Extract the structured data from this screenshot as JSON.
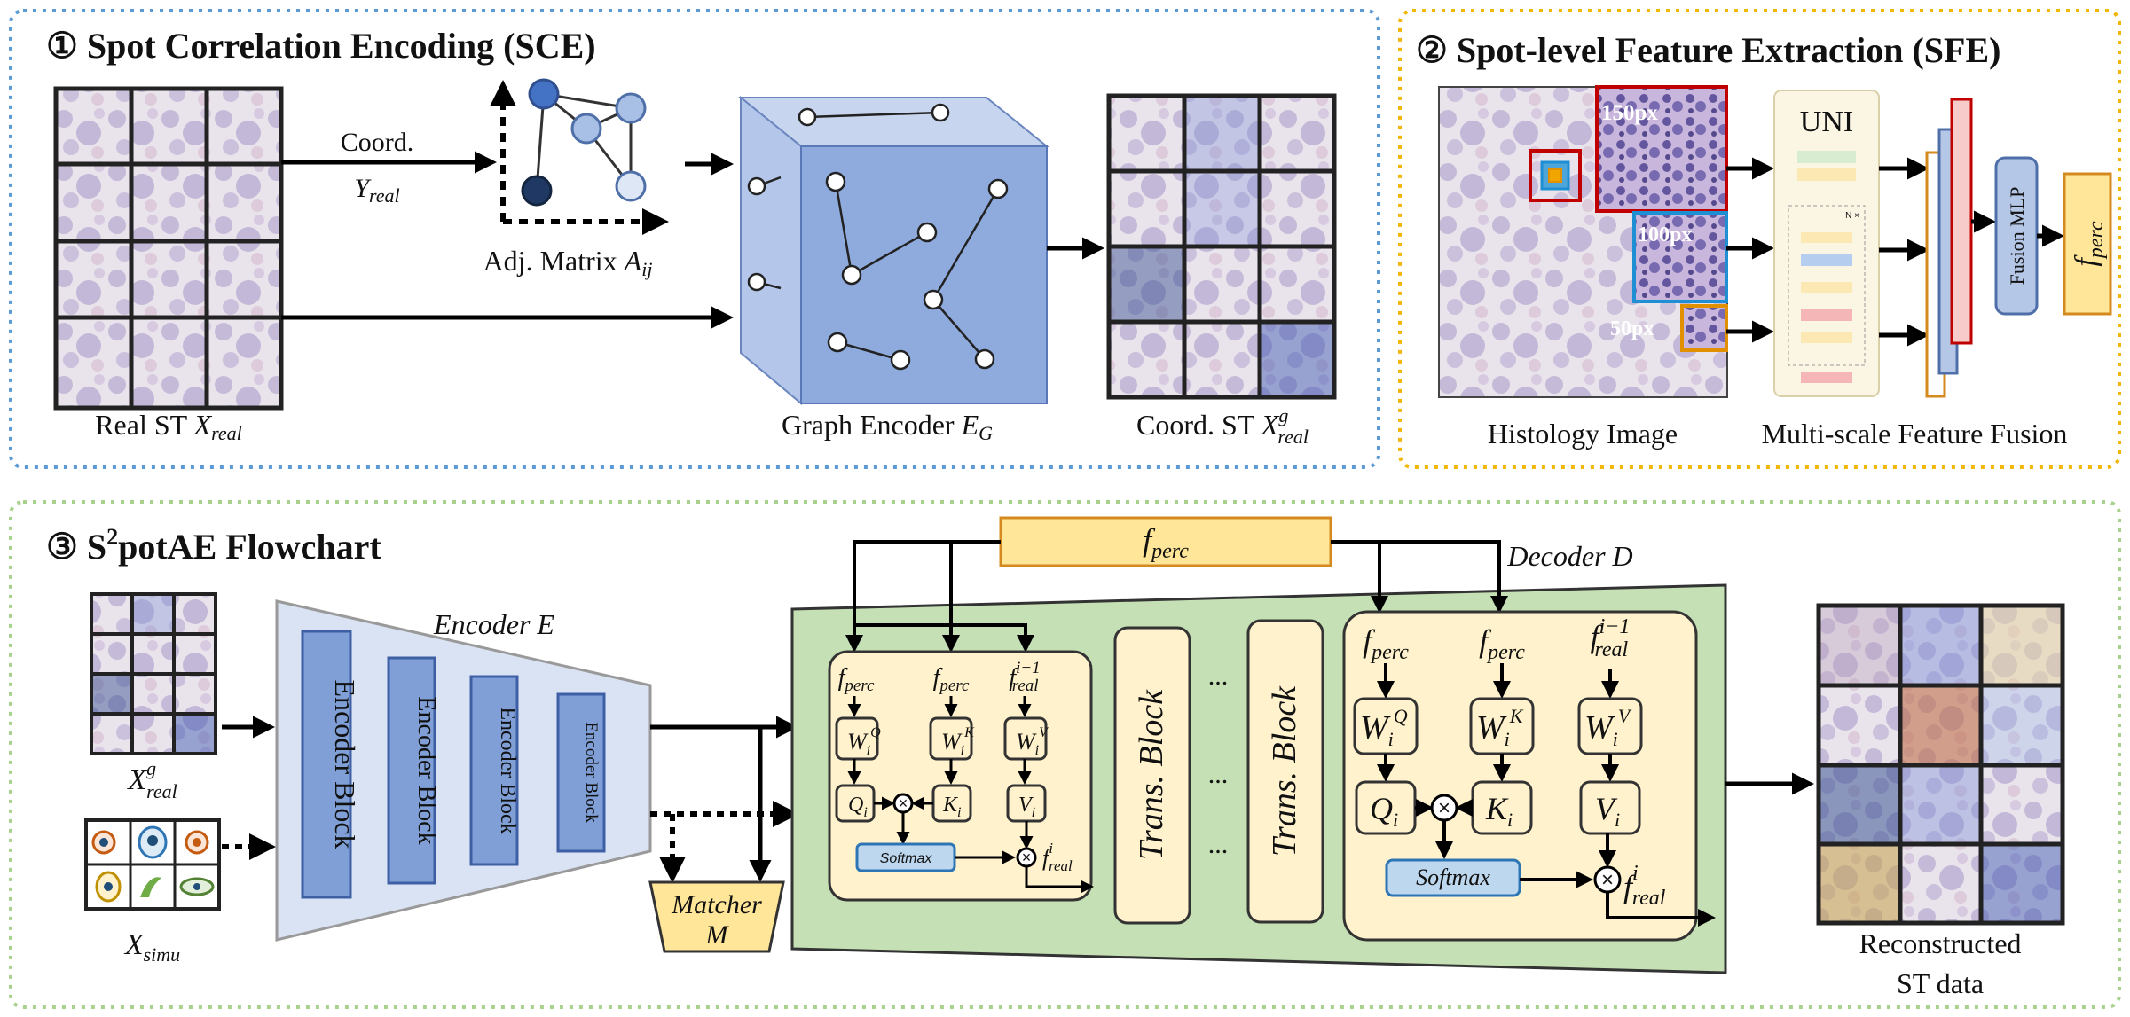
{
  "sce": {
    "title": "① Spot Correlation Encoding (SCE)",
    "real_st_label": "Real ST",
    "real_st_var": "X",
    "real_st_sub": "real",
    "coord_label": "Coord.",
    "coord_var": "Y",
    "coord_sub": "real",
    "adj_label": "Adj. Matrix",
    "adj_var": "A",
    "adj_sub": "ij",
    "graph_encoder_label": "Graph Encoder",
    "graph_encoder_var": "E",
    "graph_encoder_sub": "G",
    "coord_st_label": "Coord. ST",
    "coord_st_var": "X",
    "coord_st_sup": "g",
    "coord_st_sub": "real"
  },
  "sfe": {
    "title": "② Spot-level Feature Extraction (SFE)",
    "crop_150": "150px",
    "crop_100": "100px",
    "crop_50": "50px",
    "uni_label": "UNI",
    "uni_repeat": "N ×",
    "fusion_mlp": "Fusion MLP",
    "fperc_var": "f",
    "fperc_sub": "perc",
    "histology_label": "Histology Image",
    "fusion_label": "Multi-scale Feature Fusion"
  },
  "flow": {
    "title_prefix": "③ S",
    "title_sup": "2",
    "title_suffix": "potAE Flowchart",
    "xg_var": "X",
    "xg_sup": "g",
    "xg_sub": "real",
    "xsimu_var": "X",
    "xsimu_sub": "simu",
    "encoder_label": "Encoder E",
    "encoder_blocks": [
      "Encoder Block",
      "Encoder Block",
      "Encoder Block",
      "Encoder Block"
    ],
    "matcher_line1": "Matcher",
    "matcher_line2": "M",
    "fperc_top_var": "f",
    "fperc_top_sub": "perc",
    "decoder_label": "Decoder D",
    "trans_block": "Trans. Block",
    "ellipsis": "...",
    "softmax": "Softmax",
    "attn": {
      "f": "f",
      "perc": "perc",
      "real": "real",
      "i_minus_1": "i−1",
      "i": "i",
      "W": "W",
      "Q": "Q",
      "K": "K",
      "V": "V"
    },
    "reconstructed_line1": "Reconstructed",
    "reconstructed_line2": "ST data"
  },
  "colors": {
    "blue_dotted": "#5b9bd5",
    "yellow_dotted": "#f2b705",
    "green_dotted": "#a9d18e",
    "graph_blue": "#8faadc",
    "encoder_light": "#dae3f3",
    "encoder_block": "#7f9fd6",
    "decoder_green": "#c5e0b4",
    "attn_cream": "#fff2cc",
    "fperc_fill": "#ffe699",
    "fperc_border": "#d48a1e"
  }
}
